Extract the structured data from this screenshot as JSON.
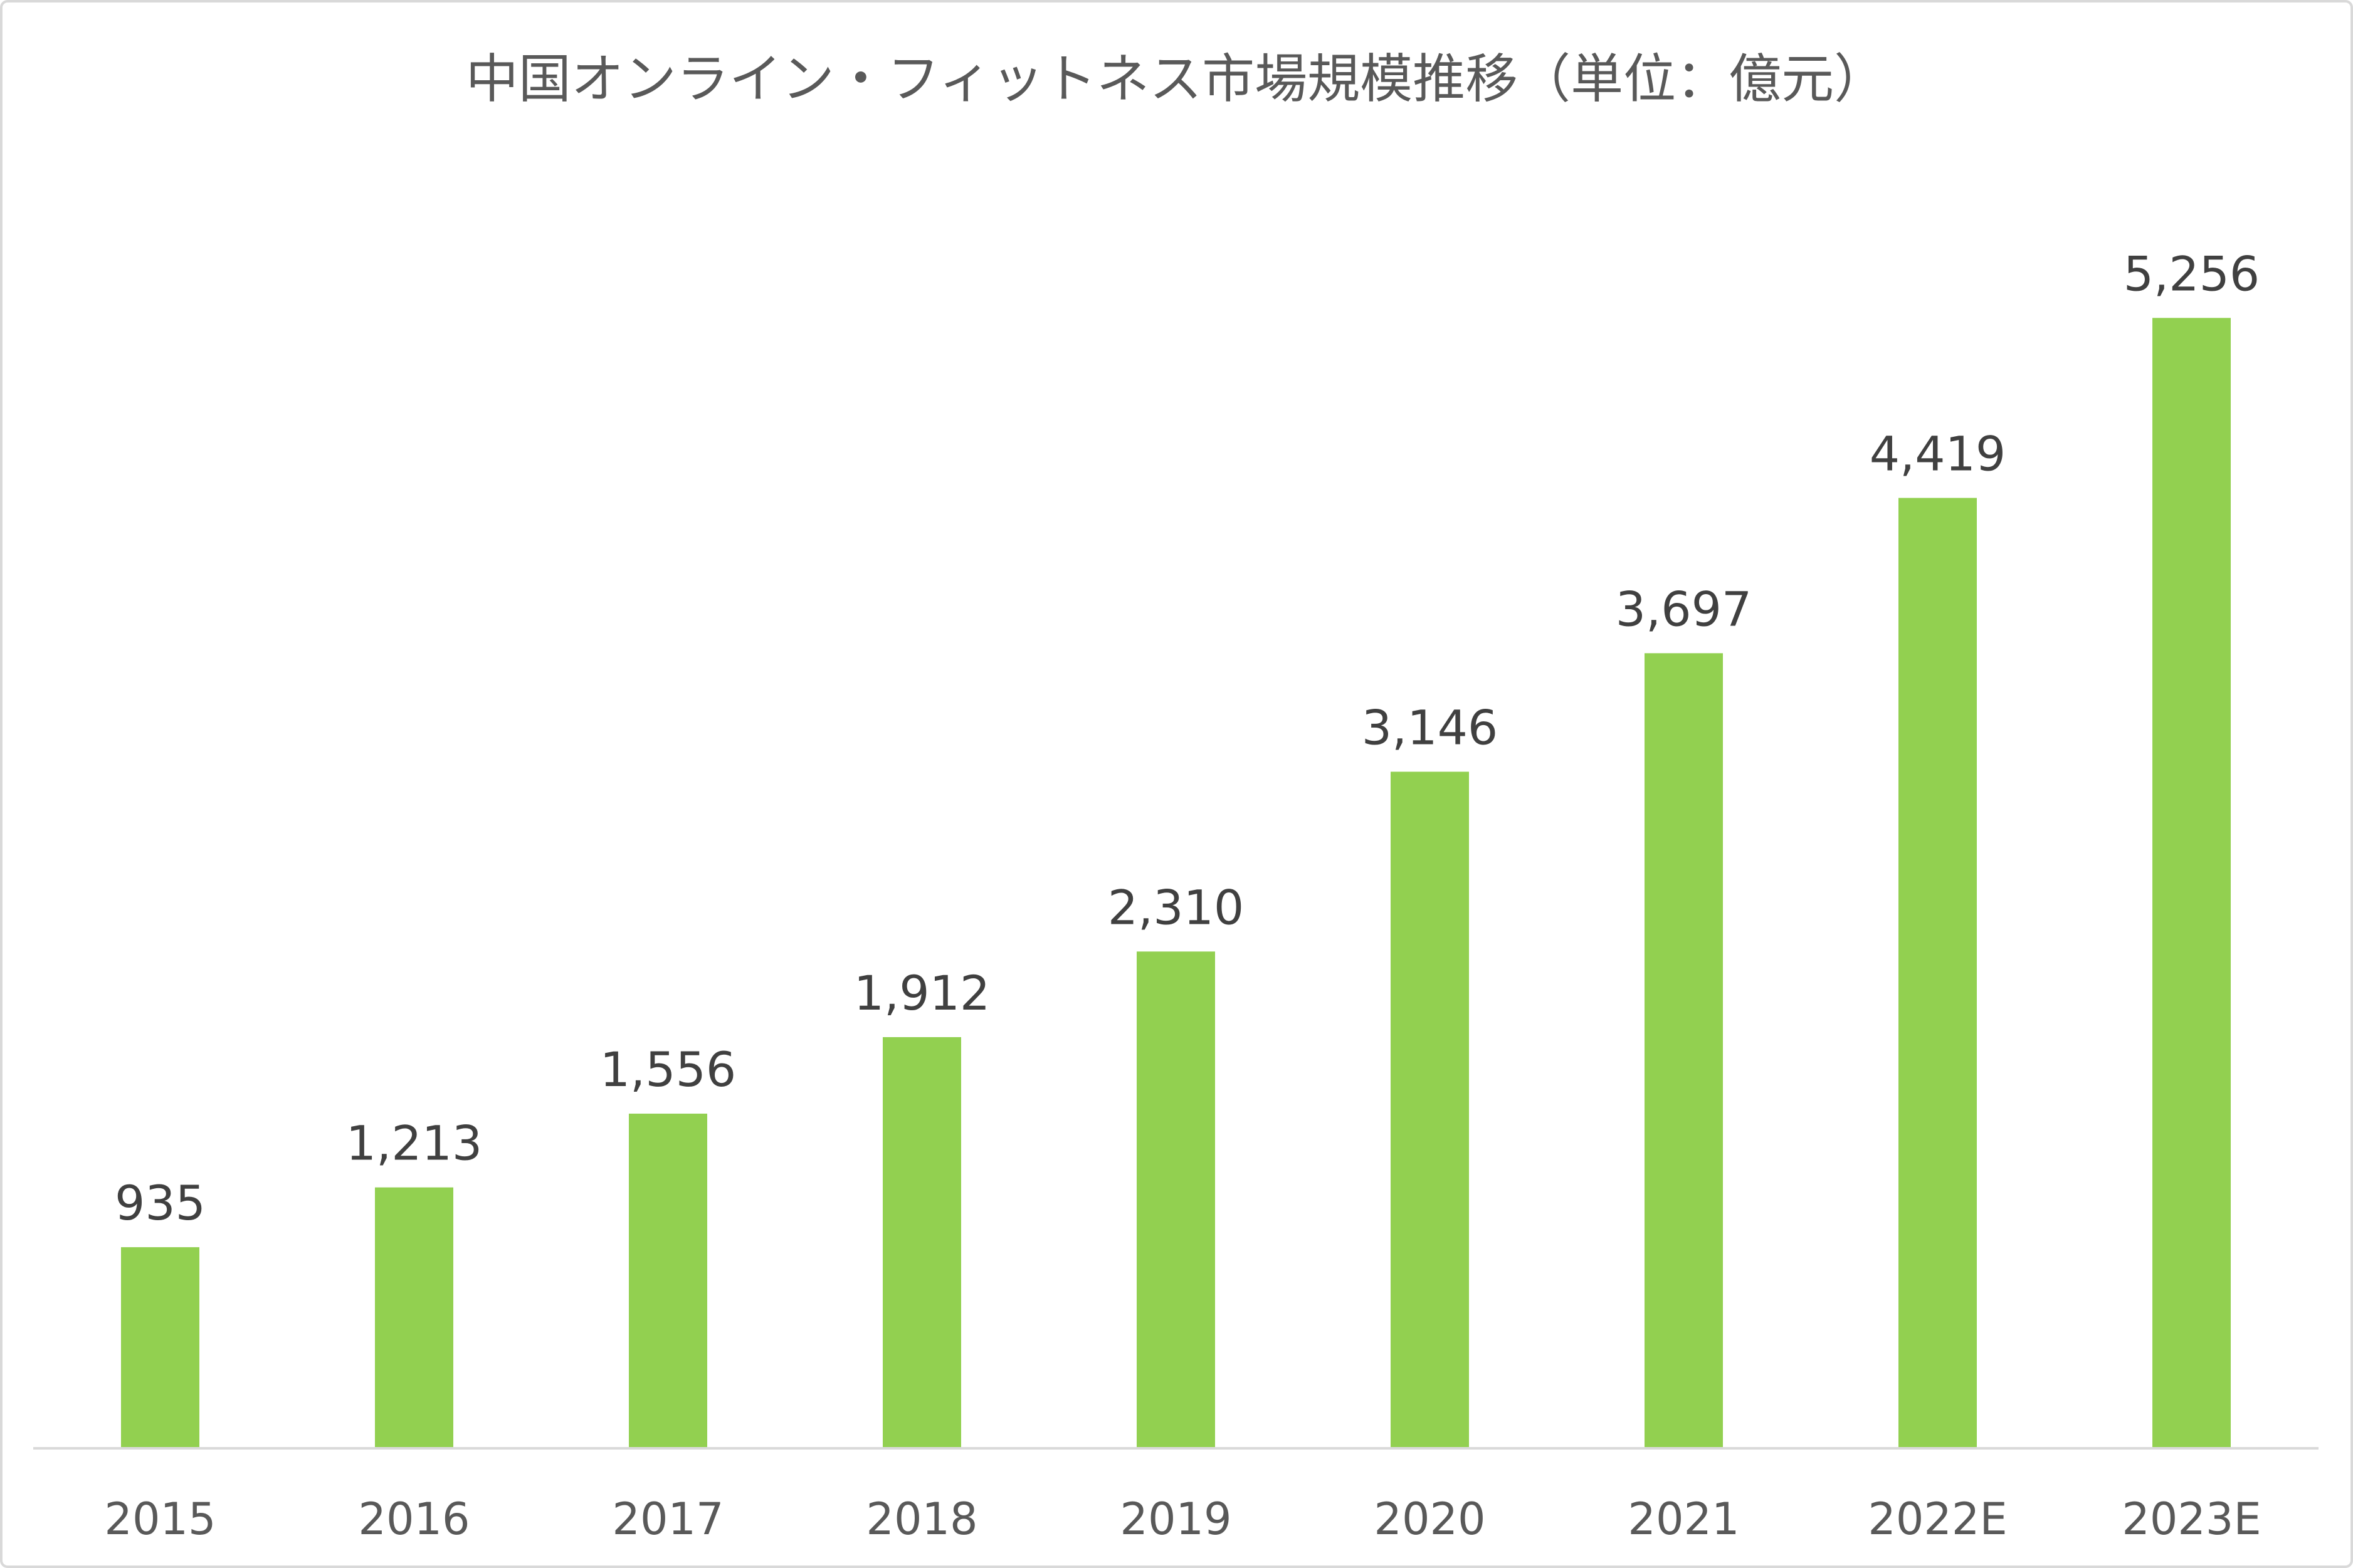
{
  "chart_data": {
    "type": "bar",
    "title": "中国オンライン・フィットネス市場規模推移（単位：億元）",
    "xlabel": "",
    "ylabel": "",
    "categories": [
      "2015",
      "2016",
      "2017",
      "2018",
      "2019",
      "2020",
      "2021",
      "2022E",
      "2023E"
    ],
    "values": [
      935,
      1213,
      1556,
      1912,
      2310,
      3146,
      3697,
      4419,
      5256
    ],
    "ylim": [
      0,
      6000
    ],
    "grid": false,
    "legend": "none",
    "data_labels": true
  },
  "colors": {
    "bar": "#92D050",
    "title": "#595959",
    "tick_label": "#595959",
    "data_label": "#404040",
    "axis_line": "#D9D9D9",
    "border": "#D9D9D9",
    "background": "#FFFFFF"
  }
}
